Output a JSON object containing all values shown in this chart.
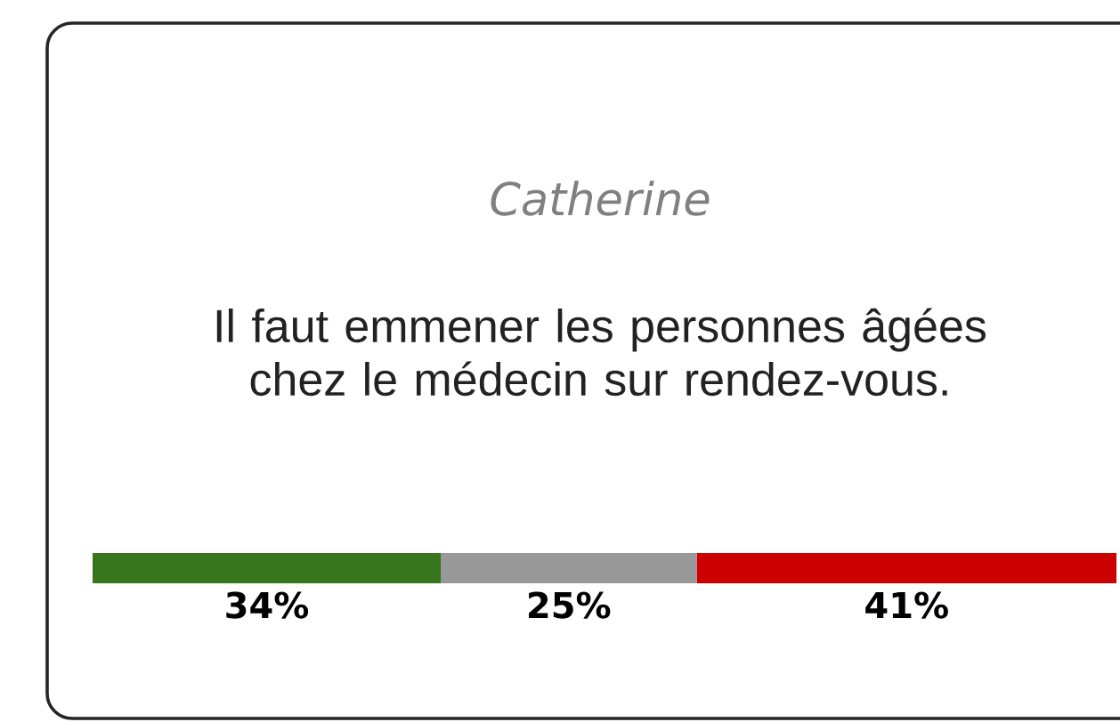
{
  "chart_data": {
    "type": "bar",
    "orientation": "horizontal",
    "stacked": true,
    "title": "Catherine",
    "subtitle": "Il faut emmener les personnes âgées chez le médecin sur rendez-vous.",
    "categories": [
      null
    ],
    "series": [
      {
        "color": "#38761d",
        "values": [
          34
        ],
        "value_labels": [
          "34%"
        ]
      },
      {
        "color": "#999999",
        "values": [
          25
        ],
        "value_labels": [
          "25%"
        ]
      },
      {
        "color": "#cc0000",
        "values": [
          41
        ],
        "value_labels": [
          "41%"
        ]
      }
    ]
  }
}
